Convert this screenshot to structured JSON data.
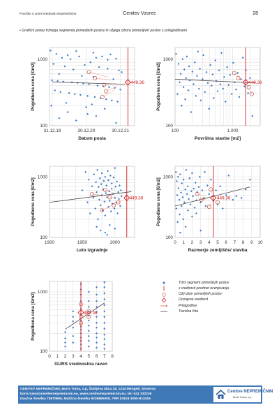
{
  "header": {
    "left": "Poročilo o oceni vrednosti nepremičnine",
    "center": "Cenitev Vzorec",
    "page": "28"
  },
  "intro": "• Grafični prikaz tržnega segmenta primerljivih poslov in ožjega izbora primerljivih poslov s prilagoditvami",
  "colors": {
    "market": "#3d7cc9",
    "selected": "#c0392b",
    "subject": "#d11a1a",
    "adjustment": "#e0442c",
    "trend": "#444444"
  },
  "chart_data": [
    {
      "type": "scatter",
      "xlabel": "Datum posla",
      "ylabel": "Pogodbena cena [€/m2]",
      "x_scale": "date",
      "y_scale": "log",
      "ylim": [
        100,
        1500
      ],
      "xticks": [
        "31.12.19",
        "30.12.20",
        "30.12.21"
      ],
      "yticks": [
        "100",
        "1000"
      ],
      "subject": {
        "x": "2022-03-20",
        "y": 449.36,
        "label": "449,36"
      },
      "selected_x": [
        "2021-01-28",
        "2021-04-01",
        "2021-07-07",
        "2021-07-28",
        "2021-06-20"
      ],
      "selected_y": [
        640,
        520,
        410,
        330,
        270
      ],
      "market_x": [
        "2019-12-12",
        "2020-02-12",
        "2020-04-13",
        "2020-06-13",
        "2020-07-13",
        "2020-09-12",
        "2020-10-13",
        "2021-02-12",
        "2021-03-15",
        "2021-04-14",
        "2021-06-15",
        "2021-08-15",
        "2021-09-14",
        "2021-11-14",
        "2020-01-12",
        "2020-05-13",
        "2020-08-12",
        "2020-12-12",
        "2021-05-15",
        "2021-08-15",
        "2021-12-14",
        "2022-01-13",
        "2020-03-13",
        "2020-11-12",
        "2021-03-15",
        "2021-10-15",
        "2019-12-27",
        "2020-02-26",
        "2020-04-27",
        "2020-07-28",
        "2020-09-27",
        "2020-11-27",
        "2021-01-27",
        "2021-04-29",
        "2021-06-30",
        "2021-08-30",
        "2021-10-30",
        "2021-12-29",
        "2020-01-27",
        "2020-03-27",
        "2020-06-28",
        "2020-08-27",
        "2020-10-27",
        "2021-01-12",
        "2021-03-30",
        "2021-05-30",
        "2021-07-30",
        "2021-09-29",
        "2021-11-29",
        "2020-05-28",
        "2021-02-27",
        "2019-12-20",
        "2020-12-27",
        "2021-07-15",
        "2020-06-13",
        "2021-01-12",
        "2021-04-14",
        "2020-03-13",
        "2020-09-12",
        "2021-11-14"
      ],
      "market_y": [
        1350,
        1200,
        1050,
        1150,
        1000,
        1320,
        1100,
        900,
        1250,
        1050,
        1100,
        980,
        1180,
        1020,
        850,
        780,
        700,
        820,
        760,
        720,
        680,
        640,
        600,
        560,
        540,
        500,
        480,
        470,
        460,
        450,
        440,
        430,
        420,
        400,
        390,
        380,
        370,
        350,
        340,
        320,
        310,
        300,
        290,
        280,
        270,
        260,
        250,
        240,
        230,
        220,
        210,
        200,
        190,
        180,
        160,
        150,
        140,
        130,
        120,
        110
      ],
      "trend": {
        "x": [
          "2019-12-31",
          "2022-02-20"
        ],
        "y": [
          455,
          420
        ]
      }
    },
    {
      "type": "scatter",
      "xlabel": "Površina stavbe [m2]",
      "ylabel": "Pogodbena cena [€/m2]",
      "x_scale": "log",
      "y_scale": "log",
      "xlim": [
        100,
        3000
      ],
      "ylim": [
        100,
        1500
      ],
      "xticks": [
        "100",
        "1.000"
      ],
      "yticks": [
        "100",
        "1000"
      ],
      "subject": {
        "x": 1680,
        "y": 449.36,
        "label": "449,36"
      },
      "selected_x": [
        1060,
        1250,
        1900,
        2150
      ],
      "selected_y": [
        620,
        520,
        380,
        300
      ],
      "market_x": [
        104,
        110,
        115,
        120,
        125,
        130,
        135,
        140,
        145,
        150,
        155,
        160,
        170,
        175,
        180,
        190,
        200,
        210,
        220,
        230,
        240,
        250,
        260,
        270,
        280,
        300,
        310,
        330,
        350,
        370,
        390,
        410,
        430,
        450,
        470,
        500,
        520,
        550,
        580,
        610,
        640,
        680,
        710,
        750,
        800,
        850,
        900,
        960,
        1020,
        1080,
        1150,
        1220,
        1300,
        1400,
        1500,
        1600,
        1700,
        1850,
        2000,
        2200
      ],
      "market_y": [
        1200,
        300,
        850,
        450,
        600,
        200,
        1000,
        380,
        700,
        250,
        520,
        1100,
        340,
        780,
        480,
        160,
        650,
        420,
        900,
        280,
        560,
        1300,
        360,
        720,
        240,
        500,
        1150,
        320,
        640,
        440,
        180,
        820,
        400,
        590,
        260,
        960,
        470,
        330,
        680,
        420,
        1240,
        360,
        540,
        230,
        760,
        410,
        580,
        300,
        880,
        450,
        350,
        620,
        270,
        500,
        1050,
        390,
        680,
        310,
        520,
        140
      ],
      "trend": {
        "x": [
          100,
          2500
        ],
        "y": [
          500,
          440
        ]
      }
    },
    {
      "type": "scatter",
      "xlabel": "Leto izgradnje",
      "ylabel": "Pogodbena cena [€/m2]",
      "y_scale": "log",
      "xlim": [
        1900,
        2030
      ],
      "ylim": [
        100,
        1500
      ],
      "xticks": [
        "1900",
        "1950",
        "2000"
      ],
      "yticks": [
        "100",
        "1000"
      ],
      "subject": {
        "x": 2018,
        "y": 449.36,
        "label": "449,36"
      },
      "selected_x": [
        1965,
        1985,
        1992,
        1998,
        1980,
        2005
      ],
      "selected_y": [
        520,
        610,
        460,
        340,
        280,
        380
      ],
      "market_x": [
        1950,
        1955,
        1958,
        1960,
        1962,
        1965,
        1967,
        1968,
        1970,
        1971,
        1972,
        1973,
        1974,
        1975,
        1976,
        1977,
        1978,
        1979,
        1980,
        1980,
        1981,
        1982,
        1983,
        1984,
        1985,
        1985,
        1986,
        1987,
        1988,
        1989,
        1990,
        1990,
        1991,
        1992,
        1993,
        1994,
        1995,
        1995,
        1996,
        1997,
        1998,
        1999,
        2000,
        2000,
        2001,
        2002,
        2003,
        2004,
        2005,
        2006,
        2007,
        2008,
        2009,
        2010,
        1972,
        1978,
        1985,
        1992,
        2000,
        1988
      ],
      "market_y": [
        600,
        1200,
        380,
        900,
        250,
        700,
        450,
        1100,
        300,
        820,
        560,
        1300,
        200,
        680,
        420,
        950,
        340,
        760,
        500,
        1150,
        280,
        620,
        860,
        390,
        1000,
        230,
        540,
        720,
        460,
        1250,
        320,
        880,
        580,
        400,
        1050,
        270,
        640,
        780,
        360,
        520,
        980,
        300,
        1400,
        450,
        690,
        380,
        840,
        250,
        560,
        430,
        720,
        330,
        600,
        480,
        150,
        130,
        120,
        160,
        140,
        110
      ],
      "trend": {
        "x": [
          1900,
          2025
        ],
        "y": [
          380,
          570
        ]
      }
    },
    {
      "type": "scatter",
      "xlabel": "Razmerje zemljišče/ stavba",
      "ylabel": "Pogodbena cena [€/m2]",
      "y_scale": "log",
      "xlim": [
        0,
        10
      ],
      "ylim": [
        100,
        1500
      ],
      "xticks": [
        "0",
        "1",
        "2",
        "3",
        "4",
        "5",
        "6",
        "7",
        "8",
        "9",
        "10"
      ],
      "yticks": [
        "100",
        "1000"
      ],
      "subject": {
        "x": 4.5,
        "y": 449.36,
        "label": "449,36"
      },
      "selected_x": [
        2.6,
        3.1,
        4.2,
        4.0,
        5.0
      ],
      "selected_y": [
        520,
        420,
        620,
        320,
        380
      ],
      "market_x": [
        0.1,
        0.15,
        0.2,
        0.25,
        0.3,
        0.35,
        0.4,
        0.5,
        0.55,
        0.6,
        0.7,
        0.75,
        0.8,
        0.9,
        0.95,
        1.0,
        1.1,
        1.2,
        1.25,
        1.3,
        1.4,
        1.5,
        1.5,
        1.6,
        1.7,
        1.8,
        1.9,
        2.0,
        2.0,
        2.1,
        2.2,
        2.3,
        2.4,
        2.5,
        2.5,
        2.6,
        2.8,
        2.9,
        3.0,
        3.0,
        3.2,
        3.4,
        3.5,
        3.6,
        3.8,
        4.0,
        4.2,
        4.5,
        4.8,
        5.0,
        5.3,
        5.6,
        6.0,
        6.3,
        6.8,
        7.2,
        7.8,
        8.3,
        8.8,
        0.6
      ],
      "market_y": [
        1200,
        300,
        850,
        500,
        180,
        1000,
        650,
        420,
        240,
        1100,
        550,
        330,
        780,
        460,
        200,
        900,
        380,
        620,
        150,
        1300,
        520,
        280,
        700,
        430,
        950,
        350,
        580,
        220,
        1150,
        480,
        640,
        310,
        800,
        410,
        250,
        560,
        680,
        1000,
        380,
        130,
        600,
        450,
        1200,
        330,
        720,
        520,
        900,
        400,
        600,
        350,
        700,
        300,
        500,
        1050,
        420,
        480,
        450,
        620,
        900,
        120
      ],
      "trend": {
        "x": [
          0,
          8.8
        ],
        "y": [
          330,
          680
        ]
      }
    },
    {
      "type": "scatter",
      "xlabel": "GURS vrednostna raven",
      "ylabel": "Pogodbena cena [€/m2]",
      "y_scale": "log",
      "xlim": [
        0,
        8
      ],
      "ylim": [
        100,
        1500
      ],
      "xticks": [
        "0",
        "1",
        "2",
        "3",
        "4",
        "5",
        "6",
        "7",
        "8"
      ],
      "yticks": [
        "100",
        "1000"
      ],
      "subject": {
        "x": 4,
        "y": 449.36,
        "label": "449,36"
      },
      "selected_x": [
        4,
        4,
        5,
        4,
        5
      ],
      "selected_y": [
        620,
        300,
        470,
        380,
        380
      ],
      "market_x": [
        2,
        2,
        2,
        2,
        3,
        3,
        3,
        3,
        3,
        3,
        4,
        4,
        4,
        4,
        4,
        4,
        4,
        4,
        4,
        4,
        4,
        4,
        4,
        4,
        5,
        5,
        5,
        5,
        5,
        5,
        5,
        5,
        5,
        5,
        5,
        6,
        6,
        6,
        6,
        6,
        6,
        6,
        6,
        6,
        6,
        6,
        6,
        7,
        7,
        7,
        7,
        7,
        7,
        7,
        7,
        7,
        7,
        7,
        7,
        7
      ],
      "market_y": [
        120,
        140,
        165,
        210,
        140,
        180,
        250,
        320,
        380,
        470,
        110,
        130,
        150,
        170,
        200,
        230,
        260,
        330,
        420,
        520,
        700,
        900,
        1100,
        1350,
        120,
        150,
        180,
        220,
        270,
        330,
        400,
        470,
        560,
        700,
        1000,
        115,
        140,
        170,
        200,
        250,
        300,
        380,
        460,
        560,
        700,
        900,
        1200,
        110,
        130,
        160,
        190,
        240,
        300,
        380,
        470,
        600,
        750,
        950,
        1200,
        1450
      ],
      "trend": {
        "x": [
          2,
          7
        ],
        "y": [
          235,
          650
        ]
      }
    }
  ],
  "legend": {
    "items": [
      {
        "kind": "market",
        "label": "Tržni segment primerljivih poslov"
      },
      {
        "kind": "vline",
        "label": "x vrednosti predmet ocenjevanja"
      },
      {
        "kind": "selected",
        "label": "Ožji izbor primerljivih poslov"
      },
      {
        "kind": "subject",
        "label": "Ocenjena vrednost"
      },
      {
        "kind": "adjustment",
        "label": "Prilagoditve"
      },
      {
        "kind": "trend",
        "label": "Trendna črta"
      }
    ]
  },
  "footer": {
    "line1": "CENITEV NEPREMIČNIN, Boris Tuma, s.p, Šubljeva ulica 19, 1234 Mengeš, Slovenia",
    "line2": "boris.tuma@cenitevnepremicnin.eu, www.cenitevnepremicnin.eu, tel: 041 332236",
    "line3": "Davčna številka 75870665, Matična številka 9235965000, TRR 03104-1000-913416",
    "logo_title": "Cenitve NEPREMIČNIN",
    "logo_subtitle": "Boris Tuma, s.p."
  }
}
